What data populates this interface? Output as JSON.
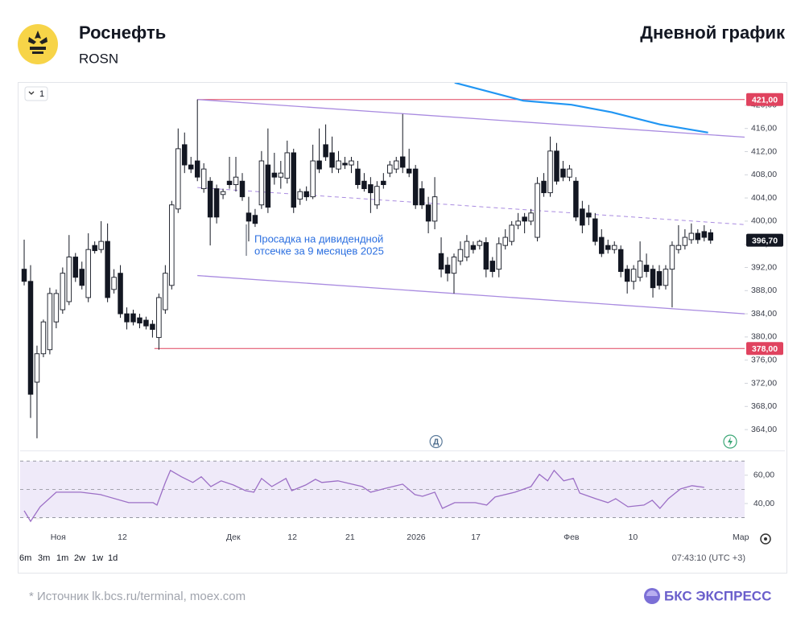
{
  "header": {
    "title": "Роснефть",
    "ticker": "ROSN",
    "chart_kind": "Дневной график"
  },
  "chart_data": {
    "type": "candlestick",
    "interval": "1",
    "xlim": [
      -0.63,
      112.3
    ],
    "xticks": [
      {
        "value": 5.3,
        "label": "Ноя"
      },
      {
        "value": 15.3,
        "label": "12"
      },
      {
        "value": 32.6,
        "label": "Дек"
      },
      {
        "value": 41.8,
        "label": "12"
      },
      {
        "value": 50.8,
        "label": "21"
      },
      {
        "value": 61.1,
        "label": "2026"
      },
      {
        "value": 70.4,
        "label": "17"
      },
      {
        "value": 85.3,
        "label": "Фев"
      },
      {
        "value": 94.9,
        "label": "10"
      },
      {
        "value": 111.7,
        "label": "Мар"
      }
    ],
    "ylim": [
      360.4,
      423.6
    ],
    "yticks": [
      {
        "value": 364,
        "label": "364,00"
      },
      {
        "value": 368,
        "label": "368,00"
      },
      {
        "value": 372,
        "label": "372,00"
      },
      {
        "value": 376,
        "label": "376,00"
      },
      {
        "value": 380,
        "label": "380,00"
      },
      {
        "value": 384,
        "label": "384,00"
      },
      {
        "value": 388,
        "label": "388,00"
      },
      {
        "value": 392,
        "label": "392,00"
      },
      {
        "value": 396,
        "label": "396,00"
      },
      {
        "value": 400,
        "label": "400,00"
      },
      {
        "value": 404,
        "label": "404,00"
      },
      {
        "value": 408,
        "label": "408,00"
      },
      {
        "value": 412,
        "label": "412,00"
      },
      {
        "value": 416,
        "label": "416,00"
      },
      {
        "value": 420,
        "label": "420,00"
      }
    ],
    "up_color": "#ffffff",
    "down_color": "#131722",
    "open": [
      391.7,
      389.6,
      372.2,
      377.1,
      377.8,
      382.6,
      384.7,
      386.1,
      393.8,
      391.7,
      386.8,
      395.8,
      395.1,
      396.5,
      388.2,
      391.0,
      384.0,
      384.0,
      383.3,
      382.9,
      382.2,
      379.9,
      384.7,
      388.9,
      402.1,
      413.2,
      409.7,
      410.4,
      405.6,
      406.9,
      405.6,
      404.6,
      406.9,
      406.3,
      406.9,
      401.4,
      401.0,
      402.8,
      409.7,
      408.3,
      407.6,
      407.4,
      411.8,
      403.8,
      405.1,
      404.2,
      410.4,
      413.2,
      411.8,
      409.0,
      410.0,
      409.7,
      409.0,
      406.9,
      406.3,
      402.8,
      406.9,
      408.3,
      409.0,
      411.1,
      409.0,
      409.0,
      405.6,
      402.8,
      400.0,
      394.4,
      392.4,
      391.0,
      393.1,
      393.8,
      395.8,
      395.8,
      396.3,
      393.1,
      391.7,
      395.8,
      396.5,
      399.3,
      400.7,
      400.0,
      397.2,
      406.9,
      404.9,
      412.1,
      409.0,
      407.6,
      406.9,
      402.1,
      401.4,
      400.4,
      397.2,
      395.8,
      395.1,
      395.1,
      391.7,
      389.6,
      390.3,
      392.4,
      391.7,
      391.3,
      388.9,
      391.7,
      395.1,
      395.8,
      396.8,
      397.9,
      398.2,
      398.0
    ],
    "high": [
      396.8,
      392.4,
      378.5,
      383.0,
      388.5,
      388.2,
      392.0,
      397.6,
      394.5,
      393.0,
      397.9,
      396.5,
      400.0,
      399.6,
      391.7,
      392.4,
      385.1,
      384.7,
      384.0,
      383.5,
      382.9,
      387.5,
      392.4,
      403.5,
      416.0,
      415.3,
      411.1,
      421.0,
      410.0,
      407.6,
      406.3,
      405.6,
      411.1,
      411.1,
      408.3,
      404.2,
      402.1,
      412.1,
      416.0,
      411.8,
      410.4,
      413.9,
      412.5,
      405.6,
      406.0,
      413.2,
      416.0,
      416.7,
      414.6,
      412.1,
      411.1,
      411.1,
      410.4,
      408.3,
      407.6,
      406.9,
      408.3,
      410.4,
      411.1,
      418.5,
      412.5,
      409.7,
      406.9,
      404.2,
      407.6,
      397.2,
      393.8,
      394.4,
      396.5,
      397.6,
      396.5,
      396.8,
      397.2,
      393.8,
      397.2,
      398.6,
      400.0,
      401.4,
      401.4,
      402.1,
      407.6,
      408.3,
      414.6,
      413.5,
      410.4,
      409.7,
      407.6,
      403.5,
      402.8,
      401.4,
      398.6,
      396.8,
      396.5,
      395.8,
      392.4,
      392.4,
      396.5,
      394.4,
      392.4,
      392.4,
      392.4,
      396.5,
      399.3,
      398.6,
      399.6,
      398.6,
      399.3,
      398.6
    ],
    "low": [
      388.9,
      366.0,
      362.5,
      376.5,
      377.0,
      381.5,
      384.0,
      385.5,
      389.5,
      388.2,
      386.0,
      394.4,
      394.5,
      386.0,
      387.5,
      383.3,
      381.3,
      382.0,
      381.5,
      381.3,
      379.9,
      377.8,
      384.0,
      388.2,
      401.4,
      408.3,
      408.3,
      406.9,
      404.9,
      395.8,
      399.6,
      403.8,
      405.6,
      405.1,
      403.5,
      396.5,
      399.0,
      402.1,
      401.4,
      406.3,
      405.6,
      406.5,
      401.4,
      402.8,
      403.5,
      403.8,
      408.3,
      410.4,
      408.3,
      408.3,
      409.0,
      408.3,
      405.6,
      405.1,
      401.4,
      402.1,
      405.6,
      407.6,
      408.3,
      408.3,
      407.6,
      402.1,
      402.1,
      397.9,
      398.6,
      390.3,
      389.6,
      387.5,
      392.4,
      393.1,
      394.4,
      395.1,
      390.3,
      390.3,
      390.3,
      395.1,
      395.8,
      398.6,
      397.9,
      399.3,
      396.5,
      404.2,
      404.2,
      406.3,
      406.9,
      406.9,
      400.0,
      397.9,
      399.3,
      395.8,
      393.8,
      394.4,
      394.4,
      390.3,
      387.5,
      388.2,
      389.6,
      390.3,
      386.8,
      388.2,
      388.2,
      385.1,
      394.4,
      395.1,
      396.1,
      396.1,
      396.5,
      396.1
    ],
    "close": [
      389.6,
      370.1,
      377.1,
      382.6,
      387.5,
      387.5,
      391.0,
      393.8,
      390.3,
      388.9,
      395.1,
      394.9,
      396.5,
      386.8,
      390.3,
      384.0,
      382.6,
      382.6,
      382.4,
      381.9,
      381.3,
      386.8,
      391.0,
      402.8,
      412.5,
      409.7,
      409.0,
      407.6,
      409.0,
      400.7,
      400.7,
      405.1,
      406.3,
      407.6,
      404.2,
      400.0,
      399.6,
      410.4,
      402.4,
      407.6,
      408.3,
      411.8,
      402.4,
      405.1,
      404.2,
      410.4,
      409.0,
      411.1,
      409.3,
      410.4,
      409.7,
      410.4,
      406.3,
      405.6,
      404.9,
      406.0,
      406.3,
      409.7,
      410.4,
      409.3,
      408.3,
      402.8,
      402.8,
      400.0,
      404.2,
      391.7,
      391.0,
      393.8,
      395.1,
      396.5,
      395.1,
      396.5,
      391.7,
      391.3,
      396.1,
      397.2,
      399.3,
      400.0,
      400.0,
      401.4,
      406.5,
      404.9,
      412.1,
      406.9,
      407.6,
      409.0,
      400.7,
      399.3,
      400.7,
      396.5,
      394.4,
      395.1,
      395.8,
      391.3,
      389.6,
      391.7,
      393.1,
      391.3,
      388.5,
      388.9,
      391.7,
      395.8,
      395.8,
      397.2,
      397.9,
      396.8,
      397.2,
      396.7
    ],
    "last_price": {
      "value": 396.7,
      "label": "396,70"
    },
    "levels": [
      {
        "value": 421,
        "label": "421,00",
        "start": 27,
        "color": "#e0435f"
      },
      {
        "value": 378,
        "label": "378,00",
        "start": 20.3,
        "color": "#e0435f"
      }
    ],
    "channel": {
      "color": "#a98be0",
      "x": [
        27,
        112.3
      ],
      "upper": [
        421,
        414.5
      ],
      "middle": [
        405.8,
        399.4
      ],
      "lower": [
        390.6,
        384
      ]
    },
    "ma": {
      "color": "#2196f3",
      "x": [
        67.1,
        77.8,
        85.3,
        91.6,
        99.1,
        106.6
      ],
      "values": [
        423.9,
        420.8,
        420.1,
        418.8,
        416.7,
        415.3
      ]
    },
    "annotation": [
      "Просадка на дивидендной",
      "отсечке за 9 месяцев 2025"
    ],
    "dividend_marker": {
      "label": "Д",
      "x": 64.2
    },
    "rsi": {
      "color": "#9c6fc6",
      "ylim": [
        23.5,
        77.5
      ],
      "yticks": [
        {
          "value": 40,
          "label": "40,00"
        },
        {
          "value": 60,
          "label": "60,00"
        }
      ],
      "levels": [
        70,
        50,
        30
      ],
      "x": [
        0,
        1.0,
        2.5,
        5.0,
        8.8,
        11.9,
        16.3,
        20.1,
        20.7,
        22.0,
        22.8,
        24.5,
        26.3,
        27.6,
        29.1,
        30.7,
        32.6,
        34.5,
        35.8,
        37.0,
        38.6,
        40.8,
        41.7,
        43.9,
        45.4,
        46.4,
        48.9,
        52.7,
        54.0,
        56.5,
        59.0,
        60.9,
        62.1,
        64.0,
        65.2,
        67.1,
        70.3,
        72.1,
        73.4,
        76.5,
        79.0,
        80.3,
        81.6,
        82.6,
        84.1,
        85.6,
        86.6,
        89.1,
        91.0,
        92.2,
        94.1,
        96.6,
        97.9,
        99.1,
        100.4,
        102.3,
        104.1,
        106.0
      ],
      "values": [
        34.9,
        27.4,
        37.7,
        48.0,
        48.0,
        46.3,
        40.6,
        40.6,
        38.9,
        54.9,
        63.4,
        58.9,
        54.9,
        58.9,
        52.0,
        56.0,
        53.1,
        49.1,
        48.0,
        57.7,
        52.0,
        57.7,
        49.1,
        53.1,
        57.1,
        54.9,
        56.0,
        52.0,
        48.0,
        50.9,
        53.7,
        46.3,
        45.1,
        48.0,
        36.6,
        40.6,
        40.6,
        38.9,
        44.6,
        48.0,
        52.0,
        60.6,
        56.0,
        63.4,
        56.0,
        57.7,
        47.4,
        43.4,
        40.6,
        43.4,
        37.7,
        38.9,
        42.3,
        36.6,
        43.4,
        50.3,
        52.6,
        51.4
      ]
    }
  },
  "toolbar": {
    "ranges": [
      "6m",
      "3m",
      "1m",
      "2w",
      "1w",
      "1d"
    ],
    "time": "07:43:10 (UTC +3)"
  },
  "footer": {
    "source": "*  Источник lk.bcs.ru/terminal, moex.com",
    "brand": "БКС ЭКСПРЕСС"
  }
}
